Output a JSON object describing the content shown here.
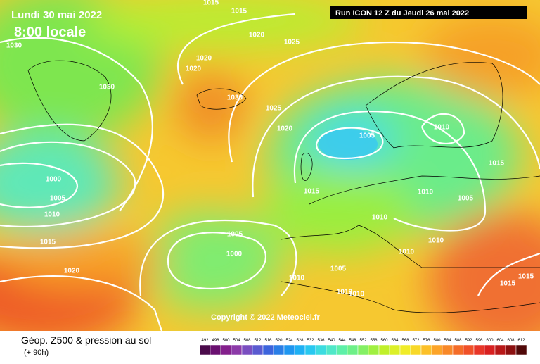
{
  "header": {
    "date": "Lundi 30 mai 2022",
    "time": "8:00 locale",
    "run": "Run ICON 12 Z du Jeudi 26 mai 2022"
  },
  "map": {
    "isobar_labels": [
      1015,
      1015,
      1020,
      1025,
      1030,
      1020,
      1020,
      1030,
      1030,
      1025,
      1020,
      1005,
      1010,
      1015,
      1000,
      1005,
      1010,
      1015,
      1010,
      1005,
      1010,
      1015,
      1005,
      1000,
      1010,
      1010,
      1020,
      1005,
      1010,
      1015,
      1015,
      1010,
      1010
    ],
    "copyright": "Copyright © 2022 Meteociel.fr"
  },
  "footer": {
    "title": "Géop. Z500 & pression au sol",
    "lead": "(+ 90h)"
  },
  "scale": {
    "labels": [
      492,
      496,
      500,
      504,
      508,
      512,
      516,
      520,
      524,
      528,
      532,
      536,
      540,
      544,
      548,
      552,
      556,
      560,
      564,
      568,
      572,
      576,
      580,
      584,
      588,
      592,
      596,
      600,
      604,
      608,
      612
    ],
    "colors": [
      "#4b0a4b",
      "#6a1070",
      "#84208c",
      "#8c3aa8",
      "#7a4ec0",
      "#5a5ad0",
      "#3c64dc",
      "#2a7ee6",
      "#1e96f0",
      "#1eb0f4",
      "#28c8f0",
      "#3cdce0",
      "#50e8c8",
      "#5ef0a8",
      "#6ef088",
      "#84f064",
      "#a0f040",
      "#c0f02a",
      "#dcf028",
      "#f0ec28",
      "#f8d828",
      "#fcc028",
      "#fca428",
      "#f88828",
      "#f46c28",
      "#f05028",
      "#e83628",
      "#d82020",
      "#b81818",
      "#8c1010",
      "#500808"
    ]
  }
}
